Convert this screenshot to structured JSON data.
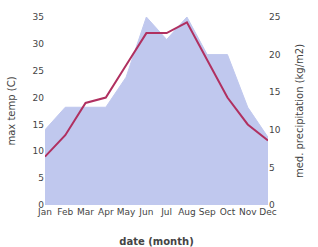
{
  "chart_data": {
    "type": "line",
    "xlabel": "date (month)",
    "ylabel": "max temp (C)",
    "y2label": "med. precipitation (kg/m2)",
    "categories": [
      "Jan",
      "Feb",
      "Mar",
      "Apr",
      "May",
      "Jun",
      "Jul",
      "Aug",
      "Sep",
      "Oct",
      "Nov",
      "Dec"
    ],
    "series": [
      {
        "type": "area",
        "axis": "y2",
        "color": "#c0c8ee",
        "values": [
          10,
          13,
          13,
          13,
          17,
          25,
          22,
          25,
          20,
          20,
          13,
          9
        ]
      },
      {
        "type": "line",
        "color": "#b03060",
        "values": [
          9,
          13,
          19,
          20,
          26,
          32,
          32,
          34,
          27,
          20,
          15,
          12
        ]
      }
    ],
    "ylim": [
      0,
      35
    ],
    "yticks": [
      0,
      5,
      10,
      15,
      20,
      25,
      30,
      35
    ],
    "y2lim": [
      0,
      25
    ],
    "y2ticks": [
      0,
      5,
      10,
      15,
      20,
      25
    ],
    "grid": false
  }
}
